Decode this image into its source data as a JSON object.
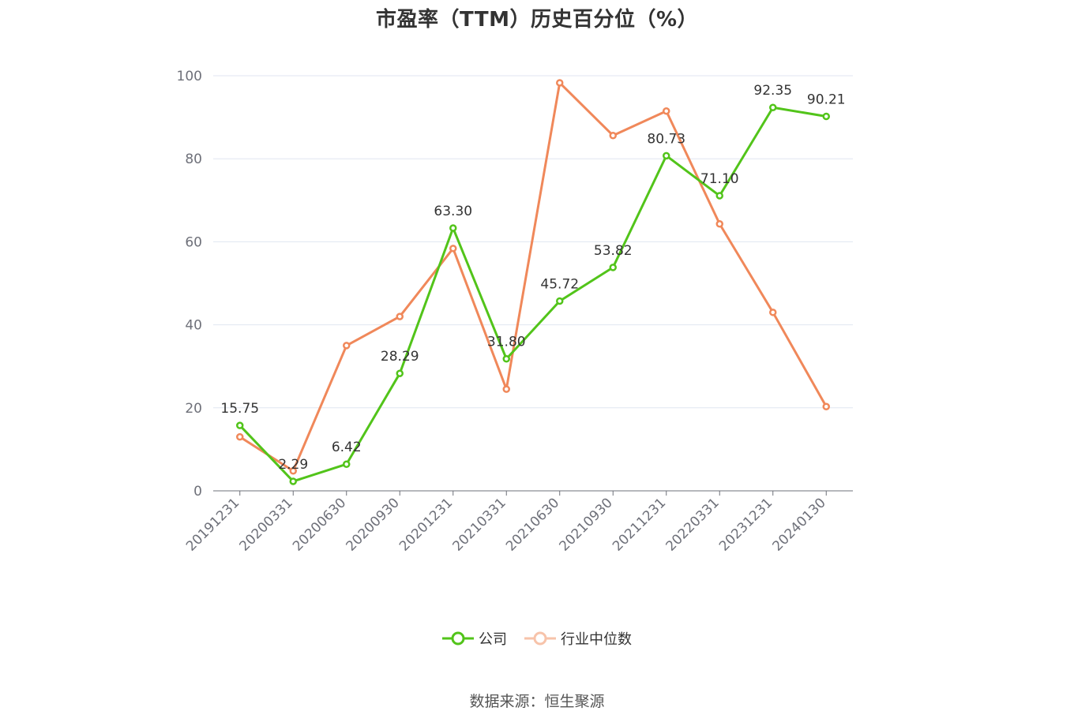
{
  "chart_data": {
    "type": "line",
    "title": "市盈率（TTM）历史百分位（%）",
    "categories": [
      "20191231",
      "20200331",
      "20200630",
      "20200930",
      "20201231",
      "20210331",
      "20210630",
      "20210930",
      "20211231",
      "20220331",
      "20231231",
      "20240130"
    ],
    "series": [
      {
        "name": "公司",
        "color": "#52c41a",
        "values": [
          15.75,
          2.29,
          6.42,
          28.29,
          63.3,
          31.8,
          45.72,
          53.82,
          80.73,
          71.1,
          92.35,
          90.21
        ],
        "labels": [
          "15.75",
          "2.29",
          "6.42",
          "28.29",
          "63.30",
          "31.80",
          "45.72",
          "53.82",
          "80.73",
          "71.10",
          "92.35",
          "90.21"
        ]
      },
      {
        "name": "行业中位数",
        "color": "#f0885a",
        "values": [
          13.0,
          4.8,
          35.0,
          42.0,
          58.4,
          24.5,
          98.3,
          85.6,
          91.5,
          64.3,
          43.0,
          20.3
        ]
      }
    ],
    "ylim": [
      0,
      100
    ],
    "yticks": [
      "0",
      "20",
      "40",
      "60",
      "80",
      "100"
    ],
    "grid": true,
    "legend_position": "bottom"
  },
  "source_text": "数据来源：恒生聚源"
}
